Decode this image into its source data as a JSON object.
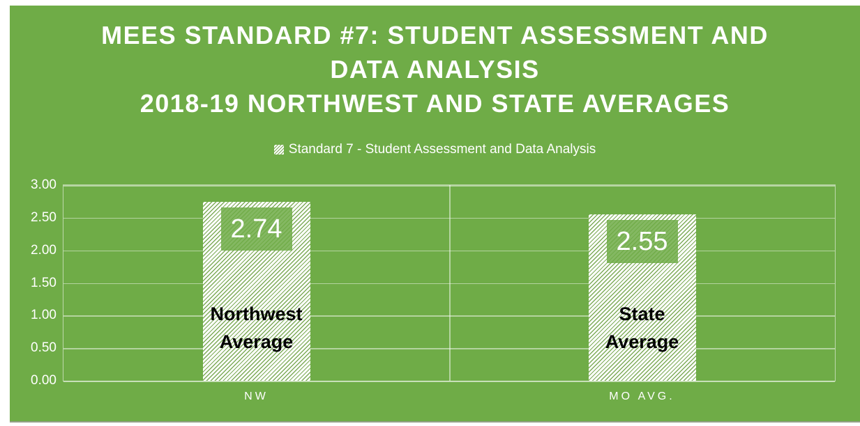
{
  "chart_data": {
    "type": "bar",
    "title_lines": [
      "MEES STANDARD #7: STUDENT ASSESSMENT AND",
      "DATA ANALYSIS",
      "2018-19 NORTHWEST AND STATE AVERAGES"
    ],
    "legend": {
      "position": "top",
      "entries": [
        "Standard 7 - Student Assessment and Data Analysis"
      ]
    },
    "categories": [
      "NW",
      "MO AVG."
    ],
    "series": [
      {
        "name": "Standard 7 - Student Assessment and Data Analysis",
        "values": [
          2.74,
          2.55
        ]
      }
    ],
    "value_labels": [
      "2.74",
      "2.55"
    ],
    "bar_inner_labels": [
      "Northwest Average",
      "State Average"
    ],
    "ylim": [
      0,
      3
    ],
    "ytick_step": 0.5,
    "yticks": [
      "3.00",
      "2.50",
      "2.00",
      "1.50",
      "1.00",
      "0.50",
      "0.00"
    ],
    "grid": true,
    "xlabel": "",
    "ylabel": ""
  },
  "colors": {
    "panel_green": "#6FAC47",
    "bar_fill": "#FFFFFF",
    "bar_hatch_line": "#7DAB58",
    "value_chip_green": "#8CBB68",
    "gridline_light_green": "#A9CF8D",
    "title_text": "#FFFFFF",
    "axis_text": "#FFFFFF",
    "inner_label_text": "#000000"
  }
}
